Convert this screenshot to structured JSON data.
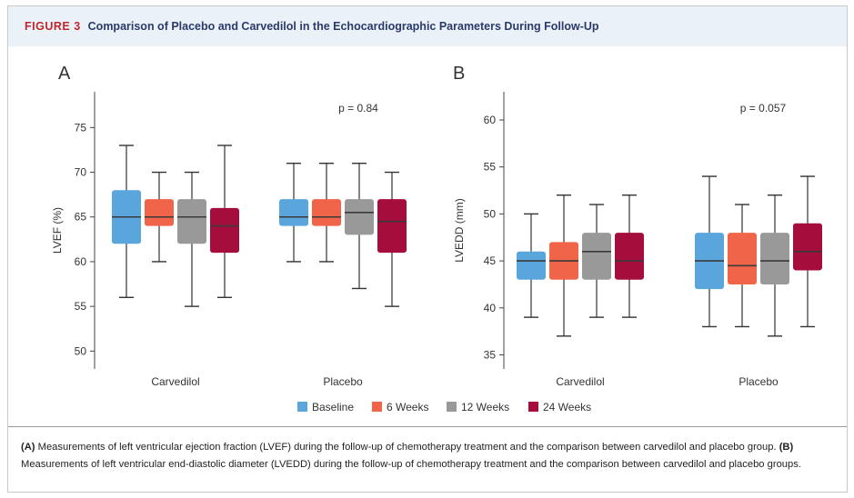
{
  "header": {
    "figure_label": "FIGURE 3",
    "title": "Comparison of Placebo and Carvedilol in the Echocardiographic Parameters During Follow-Up"
  },
  "legend": [
    {
      "label": "Baseline",
      "color": "#5aa6dc"
    },
    {
      "label": "6 Weeks",
      "color": "#f0654a"
    },
    {
      "label": "12 Weeks",
      "color": "#999999"
    },
    {
      "label": "24 Weeks",
      "color": "#a50d3c"
    }
  ],
  "chart_data": [
    {
      "panel": "A",
      "type": "boxplot",
      "ylabel": "LVEF (%)",
      "ylim": [
        48,
        79
      ],
      "yticks": [
        50,
        55,
        60,
        65,
        70,
        75
      ],
      "categories": [
        "Carvedilol",
        "Placebo"
      ],
      "annotation": "p = 0.84",
      "series": [
        {
          "name": "Baseline",
          "boxes": [
            {
              "min": 56,
              "q1": 62,
              "median": 65,
              "q3": 68,
              "max": 73
            },
            {
              "min": 60,
              "q1": 64,
              "median": 65,
              "q3": 67,
              "max": 71
            }
          ]
        },
        {
          "name": "6 Weeks",
          "boxes": [
            {
              "min": 60,
              "q1": 64,
              "median": 65,
              "q3": 67,
              "max": 70
            },
            {
              "min": 60,
              "q1": 64,
              "median": 65,
              "q3": 67,
              "max": 71
            }
          ]
        },
        {
          "name": "12 Weeks",
          "boxes": [
            {
              "min": 55,
              "q1": 62,
              "median": 65,
              "q3": 67,
              "max": 70
            },
            {
              "min": 57,
              "q1": 63,
              "median": 65.5,
              "q3": 67,
              "max": 71
            }
          ]
        },
        {
          "name": "24 Weeks",
          "boxes": [
            {
              "min": 56,
              "q1": 61,
              "median": 64,
              "q3": 66,
              "max": 73
            },
            {
              "min": 55,
              "q1": 61,
              "median": 64.5,
              "q3": 67,
              "max": 70
            }
          ]
        }
      ]
    },
    {
      "panel": "B",
      "type": "boxplot",
      "ylabel": "LVEDD (mm)",
      "ylim": [
        33.5,
        63
      ],
      "yticks": [
        35,
        40,
        45,
        50,
        55,
        60
      ],
      "categories": [
        "Carvedilol",
        "Placebo"
      ],
      "annotation": "p = 0.057",
      "series": [
        {
          "name": "Baseline",
          "boxes": [
            {
              "min": 39,
              "q1": 43,
              "median": 45,
              "q3": 46,
              "max": 50
            },
            {
              "min": 38,
              "q1": 42,
              "median": 45,
              "q3": 48,
              "max": 54
            }
          ]
        },
        {
          "name": "6 Weeks",
          "boxes": [
            {
              "min": 37,
              "q1": 43,
              "median": 45,
              "q3": 47,
              "max": 52
            },
            {
              "min": 38,
              "q1": 42.5,
              "median": 44.5,
              "q3": 48,
              "max": 51
            }
          ]
        },
        {
          "name": "12 Weeks",
          "boxes": [
            {
              "min": 39,
              "q1": 43,
              "median": 46,
              "q3": 48,
              "max": 51
            },
            {
              "min": 37,
              "q1": 42.5,
              "median": 45,
              "q3": 48,
              "max": 52
            }
          ]
        },
        {
          "name": "24 Weeks",
          "boxes": [
            {
              "min": 39,
              "q1": 43,
              "median": 45,
              "q3": 48,
              "max": 52
            },
            {
              "min": 38,
              "q1": 44,
              "median": 46,
              "q3": 49,
              "max": 54
            }
          ]
        }
      ]
    }
  ],
  "caption": {
    "a_tag": "(A)",
    "a_text": " Measurements of left ventricular ejection fraction (LVEF) during the follow-up of chemotherapy treatment and the comparison between carvedilol and placebo group. ",
    "b_tag": "(B)",
    "b_text": " Measurements of left ventricular end-diastolic diameter (LVEDD) during the follow-up of chemotherapy treatment and the comparison between carvedilol and placebo groups."
  }
}
